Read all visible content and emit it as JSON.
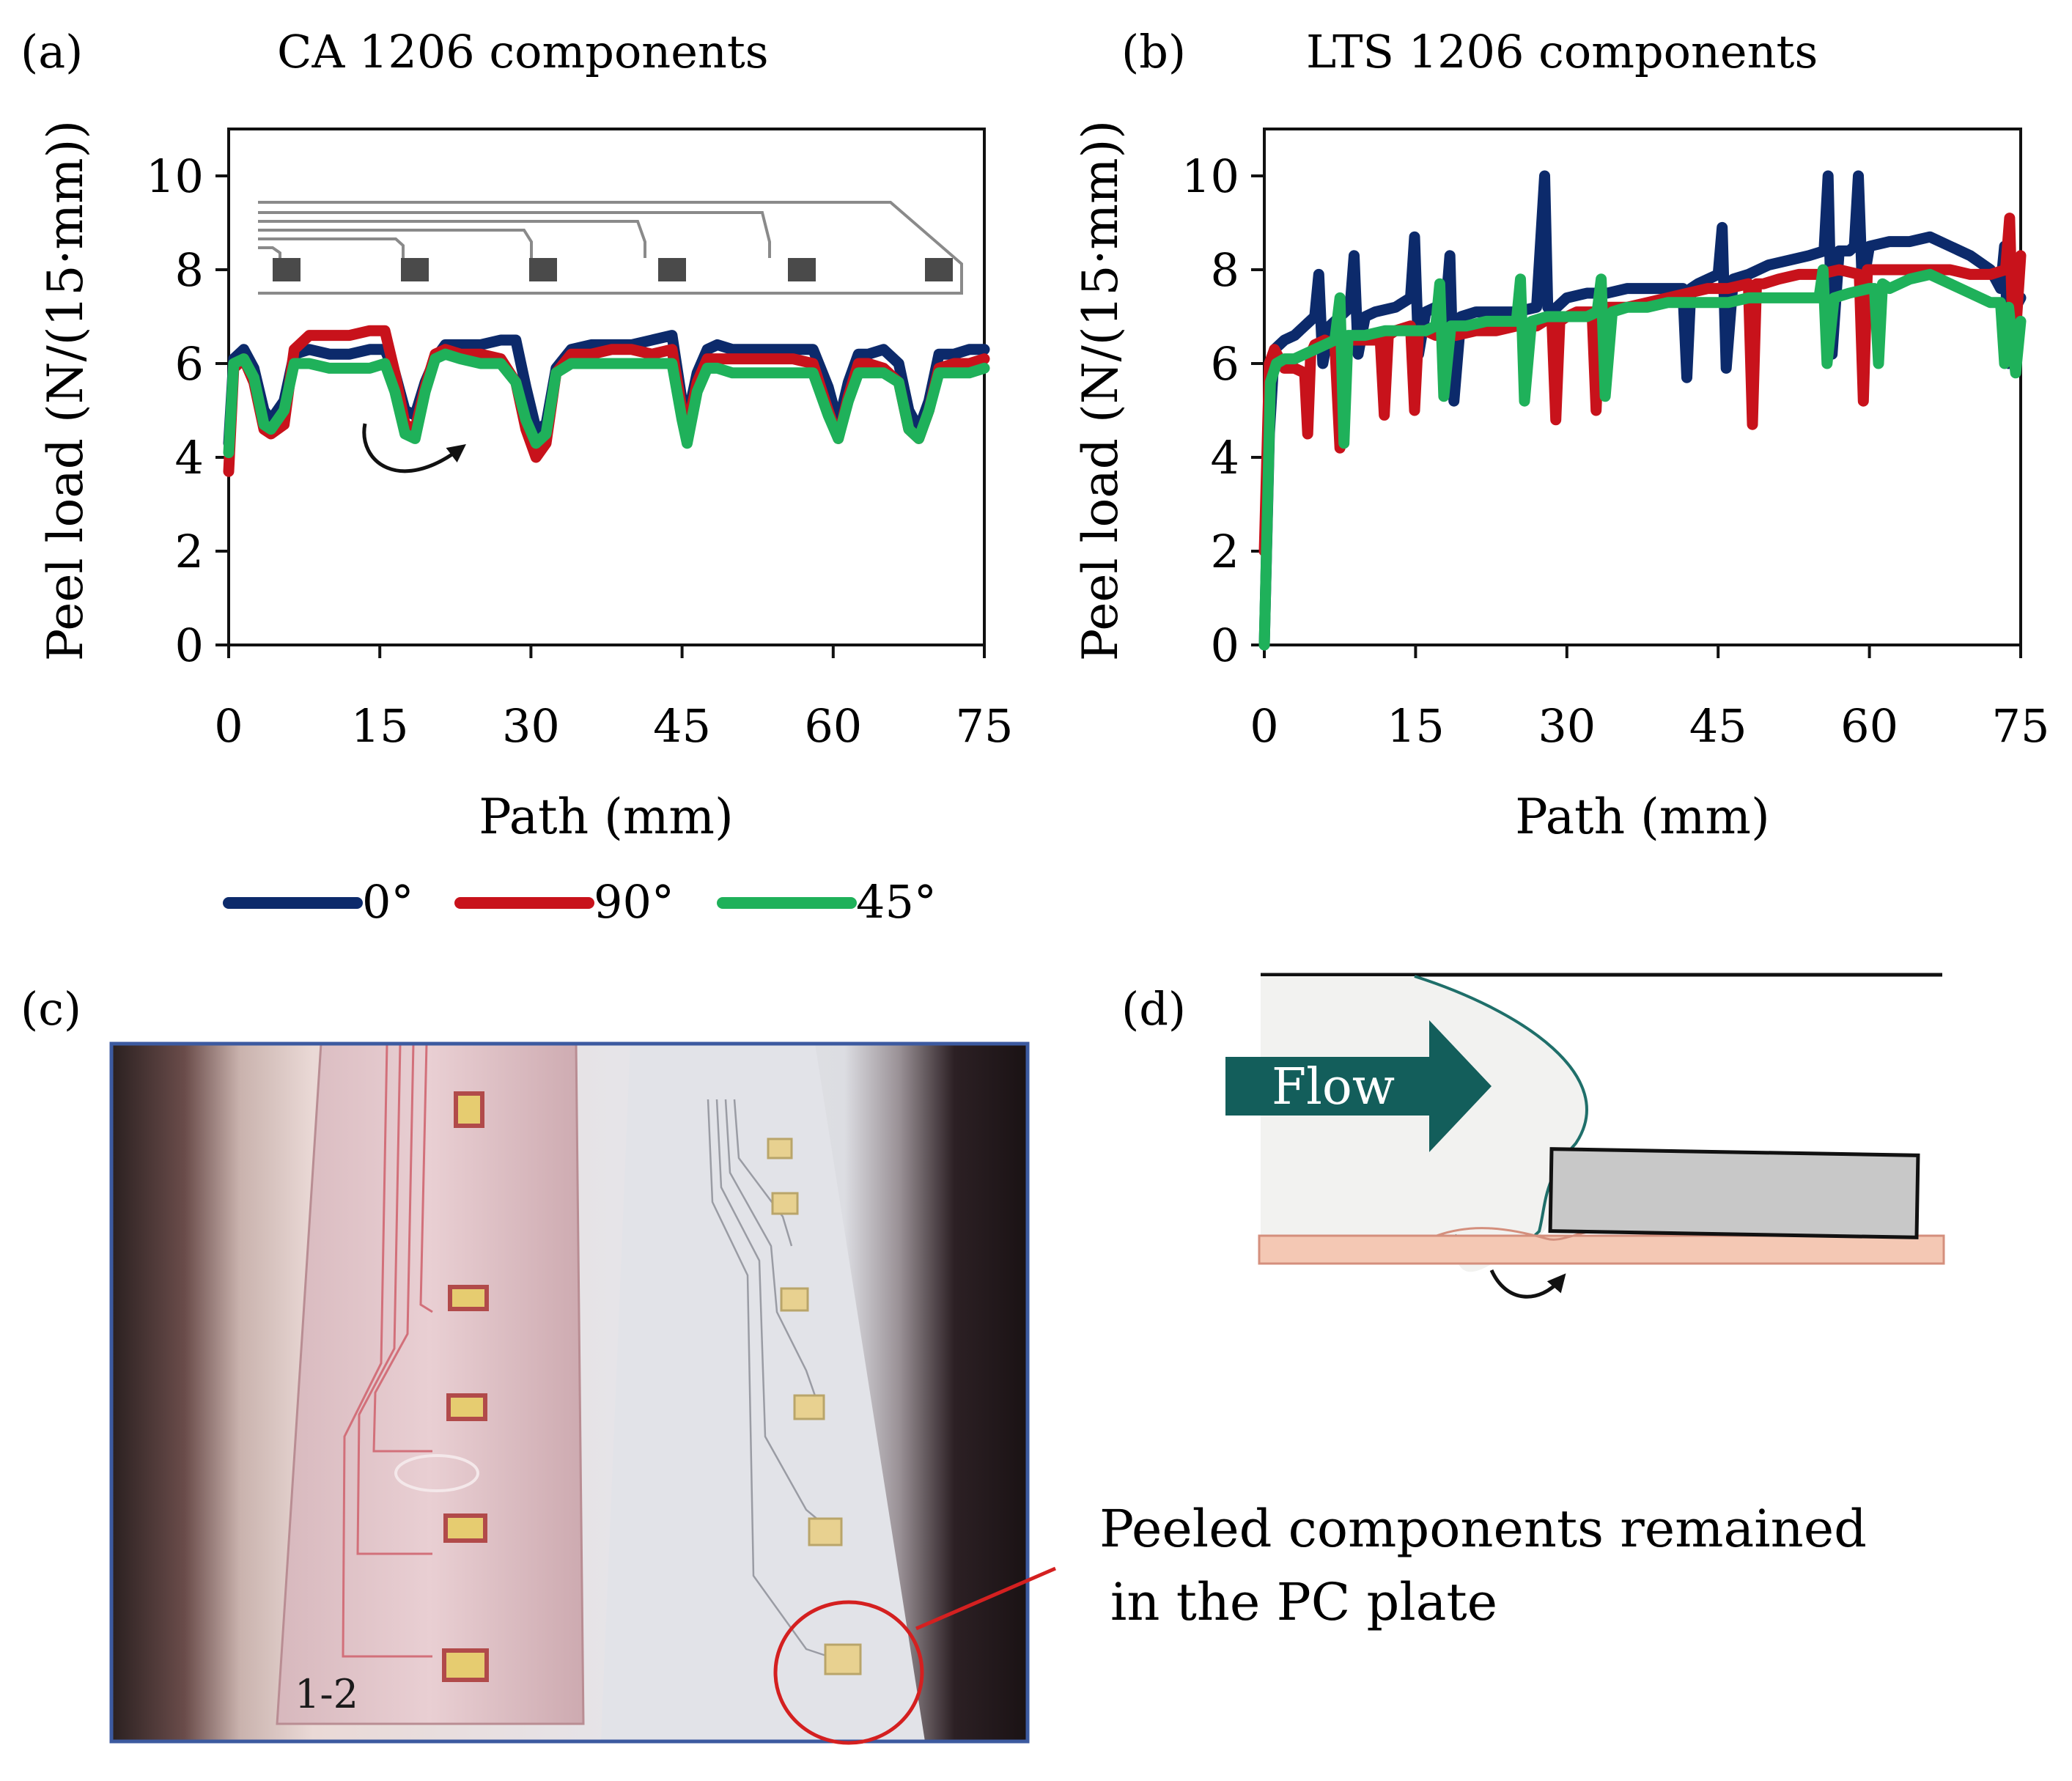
{
  "panels": {
    "a": {
      "label": "(a)",
      "title": "CA 1206 components"
    },
    "b": {
      "label": "(b)",
      "title": "LTS 1206 components"
    },
    "c": {
      "label": "(c)",
      "photo_marking": "1-2"
    },
    "d": {
      "label": "(d)",
      "flow_label": "Flow"
    }
  },
  "annotation": {
    "line1": "Peeled components remained",
    "line2": "in the PC plate"
  },
  "legend": [
    {
      "name": "0°",
      "color": "#0c2a6b"
    },
    {
      "name": "90°",
      "color": "#c8121b"
    },
    {
      "name": "45°",
      "color": "#1fb15a"
    }
  ],
  "colors": {
    "flow_arrow": "#135e5b",
    "circle": "#d42020",
    "component_box": "#c8c8c8",
    "substrate": "#f4c8b4",
    "photo_frame": "#3c5aa0"
  },
  "chart_data": [
    {
      "id": "a",
      "type": "line",
      "title": "CA 1206 components",
      "xlabel": "Path (mm)",
      "ylabel": "Peel load (N/(15·mm))",
      "xlim": [
        0,
        75
      ],
      "ylim": [
        0,
        11
      ],
      "xticks": [
        0,
        15,
        30,
        45,
        60,
        75
      ],
      "yticks": [
        0,
        2,
        4,
        6,
        8,
        10
      ],
      "series": [
        {
          "name": "0°",
          "color": "#0c2a6b",
          "x": [
            0,
            0.5,
            1.5,
            2.5,
            3.5,
            4.2,
            5.5,
            6.5,
            8,
            10,
            12,
            14,
            15.5,
            16.5,
            17.5,
            18.5,
            19.5,
            20.5,
            21.5,
            23,
            25,
            27,
            28.5,
            29.5,
            30.5,
            31.5,
            32.5,
            34,
            36,
            38,
            40,
            42,
            44,
            45,
            45.5,
            46.5,
            47.5,
            48.5,
            50,
            52,
            54,
            56,
            58,
            59.5,
            60.5,
            61.5,
            62.5,
            63.5,
            65,
            66.5,
            67.5,
            68.5,
            69.5,
            70.5,
            72,
            73.5,
            75
          ],
          "y": [
            4.3,
            6.1,
            6.3,
            5.9,
            5.0,
            4.8,
            5.2,
            6.2,
            6.3,
            6.2,
            6.2,
            6.3,
            6.3,
            5.8,
            5.0,
            4.9,
            5.6,
            6.1,
            6.4,
            6.4,
            6.4,
            6.5,
            6.5,
            5.5,
            4.6,
            4.7,
            5.9,
            6.3,
            6.4,
            6.4,
            6.4,
            6.5,
            6.6,
            5.2,
            4.8,
            5.8,
            6.3,
            6.4,
            6.3,
            6.3,
            6.3,
            6.3,
            6.3,
            5.5,
            4.7,
            5.6,
            6.2,
            6.2,
            6.3,
            6.0,
            5.0,
            4.6,
            5.2,
            6.2,
            6.2,
            6.3,
            6.3
          ]
        },
        {
          "name": "90°",
          "color": "#c8121b",
          "x": [
            0,
            0.5,
            1.5,
            2.5,
            3.5,
            4.2,
            5.5,
            6.5,
            8,
            10,
            12,
            14,
            15.5,
            16.5,
            17.5,
            18.5,
            19.5,
            20.5,
            21.5,
            23,
            25,
            27,
            28.5,
            29.5,
            30.5,
            31.5,
            32.5,
            34,
            36,
            38,
            40,
            42,
            44,
            45,
            45.5,
            46.5,
            47.5,
            48.5,
            50,
            52,
            54,
            56,
            58,
            59.5,
            60.5,
            61.5,
            62.5,
            63.5,
            65,
            66.5,
            67.5,
            68.5,
            69.5,
            70.5,
            72,
            73.5,
            75
          ],
          "y": [
            3.7,
            5.9,
            6.1,
            5.6,
            4.6,
            4.5,
            4.7,
            6.3,
            6.6,
            6.6,
            6.6,
            6.7,
            6.7,
            5.8,
            4.7,
            4.6,
            5.5,
            6.2,
            6.3,
            6.2,
            6.2,
            6.1,
            5.6,
            4.6,
            4.0,
            4.3,
            5.8,
            6.2,
            6.2,
            6.3,
            6.3,
            6.2,
            6.3,
            5.0,
            4.6,
            5.6,
            6.1,
            6.1,
            6.1,
            6.1,
            6.1,
            6.1,
            6.0,
            5.0,
            4.4,
            5.3,
            6.0,
            6.0,
            5.9,
            5.6,
            4.6,
            4.4,
            5.0,
            5.9,
            6.0,
            6.0,
            6.1
          ]
        },
        {
          "name": "45°",
          "color": "#1fb15a",
          "x": [
            0,
            0.5,
            1.5,
            2.5,
            3.5,
            4.2,
            5.5,
            6.5,
            8,
            10,
            12,
            14,
            15.5,
            16.5,
            17.5,
            18.5,
            19.5,
            20.5,
            21.5,
            23,
            25,
            27,
            28.5,
            29.5,
            30.5,
            31.5,
            32.5,
            34,
            36,
            38,
            40,
            42,
            44,
            45,
            45.5,
            46.5,
            47.5,
            48.5,
            50,
            52,
            54,
            56,
            58,
            59.5,
            60.5,
            61.5,
            62.5,
            63.5,
            65,
            66.5,
            67.5,
            68.5,
            69.5,
            70.5,
            72,
            73.5,
            75
          ],
          "y": [
            4.1,
            6.0,
            6.1,
            5.7,
            4.7,
            4.6,
            5.0,
            6.0,
            6.0,
            5.9,
            5.9,
            5.9,
            6.0,
            5.4,
            4.5,
            4.4,
            5.4,
            6.1,
            6.2,
            6.1,
            6.0,
            6.0,
            5.6,
            4.8,
            4.3,
            4.5,
            5.8,
            6.0,
            6.0,
            6.0,
            6.0,
            6.0,
            6.0,
            4.8,
            4.3,
            5.4,
            5.9,
            5.9,
            5.8,
            5.8,
            5.8,
            5.8,
            5.8,
            4.9,
            4.4,
            5.2,
            5.8,
            5.8,
            5.8,
            5.6,
            4.6,
            4.4,
            5.0,
            5.8,
            5.8,
            5.8,
            5.9
          ]
        }
      ]
    },
    {
      "id": "b",
      "type": "line",
      "title": "LTS 1206 components",
      "xlabel": "Path (mm)",
      "ylabel": "Peel load (N/(15·mm))",
      "xlim": [
        0,
        75
      ],
      "ylim": [
        0,
        11
      ],
      "xticks": [
        0,
        15,
        30,
        45,
        60,
        75
      ],
      "yticks": [
        0,
        2,
        4,
        6,
        8,
        10
      ],
      "series": [
        {
          "name": "0°",
          "color": "#0c2a6b",
          "x": [
            0,
            0.5,
            1,
            2,
            3,
            4,
            5,
            5.4,
            5.8,
            6.5,
            7.5,
            8.5,
            8.9,
            9.3,
            10,
            11,
            13,
            14.5,
            14.9,
            15.3,
            16,
            17,
            18,
            18.4,
            18.8,
            19.5,
            21,
            23,
            25,
            27,
            27.8,
            28.1,
            28.4,
            29,
            30,
            32,
            34,
            36,
            38,
            40,
            41.5,
            41.9,
            42.3,
            43,
            44,
            45,
            45.4,
            45.8,
            46.5,
            48,
            50,
            52,
            54,
            55.5,
            55.9,
            56.3,
            57,
            58,
            58.5,
            58.9,
            59.3,
            60,
            62,
            64,
            66,
            68,
            70,
            72,
            73,
            73.4,
            73.8,
            74.5,
            75
          ],
          "y": [
            0,
            4.5,
            6.3,
            6.5,
            6.6,
            6.8,
            7.0,
            7.9,
            6.0,
            6.8,
            7.0,
            7.2,
            8.3,
            6.2,
            7.0,
            7.1,
            7.2,
            7.4,
            8.7,
            6.2,
            7.1,
            7.2,
            7.2,
            8.3,
            5.2,
            7.0,
            7.1,
            7.1,
            7.1,
            7.2,
            10.0,
            7.2,
            7.1,
            7.2,
            7.4,
            7.5,
            7.5,
            7.6,
            7.6,
            7.6,
            7.6,
            5.7,
            7.6,
            7.7,
            7.8,
            7.9,
            8.9,
            5.9,
            7.8,
            7.9,
            8.1,
            8.2,
            8.3,
            8.4,
            10.0,
            6.2,
            8.4,
            8.4,
            8.5,
            10.0,
            7.6,
            8.5,
            8.6,
            8.6,
            8.7,
            8.5,
            8.3,
            8.0,
            7.6,
            8.5,
            6.0,
            7.2,
            7.4
          ]
        },
        {
          "name": "90°",
          "color": "#c8121b",
          "x": [
            0,
            0.5,
            1,
            2,
            3,
            4,
            4.3,
            4.6,
            5,
            6,
            7,
            7.5,
            7.9,
            8.3,
            9,
            10,
            11.5,
            11.9,
            12.3,
            13,
            14.5,
            14.9,
            15.3,
            16,
            17,
            19,
            21,
            23,
            25,
            27,
            28.5,
            28.9,
            29.3,
            30,
            31,
            32.5,
            32.9,
            33.3,
            34,
            36,
            38,
            40,
            42,
            44,
            46,
            48,
            48.4,
            48.8,
            49.5,
            51,
            53,
            55,
            57,
            59,
            59.4,
            59.8,
            60.5,
            62,
            64,
            66,
            68,
            70,
            72,
            73.5,
            73.9,
            74.3,
            75
          ],
          "y": [
            2.0,
            6.0,
            6.3,
            5.9,
            5.9,
            5.8,
            4.5,
            6.2,
            6.4,
            6.5,
            6.4,
            4.2,
            6.6,
            6.5,
            6.5,
            6.5,
            6.5,
            4.9,
            6.6,
            6.7,
            6.8,
            5.0,
            6.7,
            6.7,
            6.6,
            6.6,
            6.7,
            6.7,
            6.8,
            6.8,
            7.0,
            4.8,
            6.9,
            7.0,
            7.1,
            7.1,
            5.0,
            7.1,
            7.2,
            7.2,
            7.3,
            7.4,
            7.5,
            7.6,
            7.6,
            7.7,
            4.7,
            7.7,
            7.7,
            7.8,
            7.9,
            7.9,
            8.0,
            7.9,
            5.2,
            8.0,
            8.0,
            8.0,
            8.0,
            8.0,
            8.0,
            7.9,
            7.9,
            8.0,
            9.1,
            6.0,
            8.3
          ]
        },
        {
          "name": "45°",
          "color": "#1fb15a",
          "x": [
            0,
            0.6,
            1.2,
            2,
            3,
            4,
            5,
            6,
            7,
            7.5,
            7.9,
            8.3,
            9,
            10,
            12,
            14,
            16,
            17,
            17.4,
            17.8,
            18.5,
            20,
            22,
            24,
            25,
            25.4,
            25.8,
            26.5,
            28,
            30,
            32,
            33,
            33.4,
            33.8,
            34.5,
            36,
            38,
            40,
            42,
            44,
            46,
            48,
            50,
            52,
            54,
            55,
            55.4,
            55.8,
            56.5,
            58,
            60,
            60.5,
            60.9,
            61.3,
            62,
            64,
            66,
            68,
            70,
            72,
            73,
            73.4,
            73.8,
            74.5,
            75
          ],
          "y": [
            0,
            5.6,
            6.0,
            6.1,
            6.1,
            6.2,
            6.3,
            6.4,
            6.5,
            7.4,
            4.3,
            6.6,
            6.6,
            6.6,
            6.7,
            6.7,
            6.7,
            6.8,
            7.7,
            5.3,
            6.8,
            6.8,
            6.9,
            6.9,
            6.9,
            7.8,
            5.2,
            6.9,
            7.0,
            7.0,
            7.0,
            7.1,
            7.8,
            5.3,
            7.1,
            7.2,
            7.2,
            7.3,
            7.3,
            7.3,
            7.3,
            7.4,
            7.4,
            7.4,
            7.4,
            7.4,
            8.0,
            6.0,
            7.4,
            7.5,
            7.6,
            7.6,
            6.0,
            7.7,
            7.6,
            7.8,
            7.9,
            7.7,
            7.5,
            7.3,
            7.3,
            6.0,
            7.2,
            5.8,
            6.9
          ]
        }
      ]
    }
  ]
}
